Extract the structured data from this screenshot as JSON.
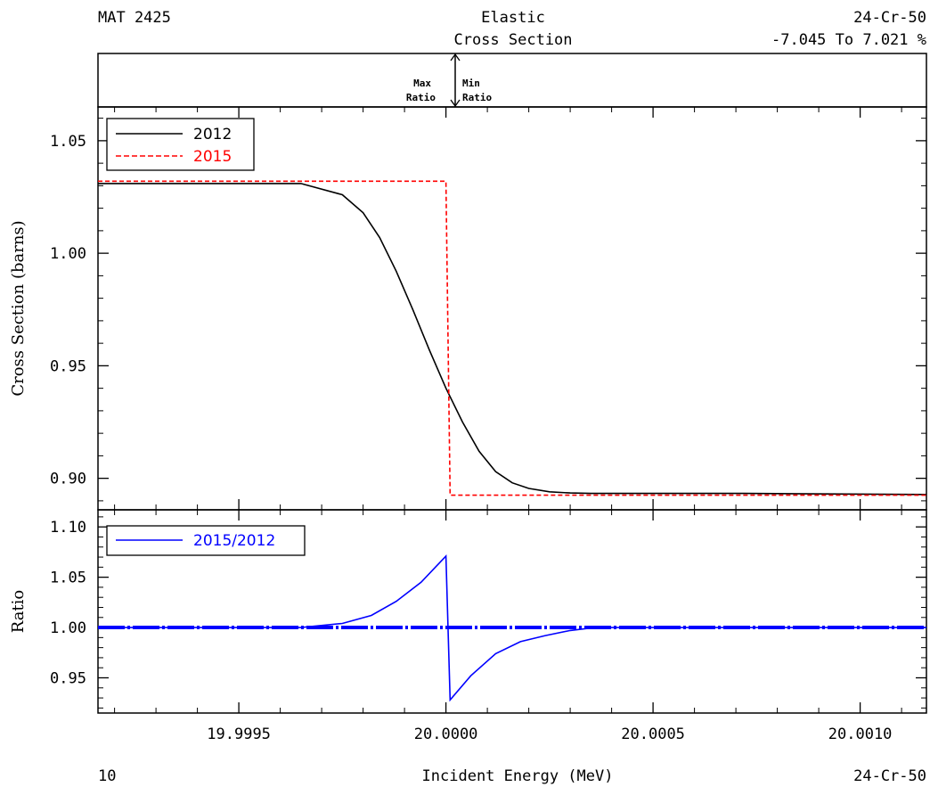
{
  "header": {
    "mat": "MAT 2425",
    "title_line1": "Elastic",
    "title_line2": "Cross Section",
    "material": "24-Cr-50",
    "range_text": "-7.045 To 7.021 %"
  },
  "ratio_indicator": {
    "max_line1": "Max",
    "max_line2": "Ratio",
    "min_line1": "Min",
    "min_line2": "Ratio"
  },
  "footer": {
    "left": "10",
    "xlabel": "Incident Energy (MeV)",
    "right": "24-Cr-50"
  },
  "colors": {
    "series_2012": "#000000",
    "series_2015": "#ff0000",
    "ratio": "#0000ff"
  },
  "chart_data": [
    {
      "type": "line",
      "ylabel": "Cross Section (barns)",
      "xlim": [
        19.99916,
        20.00116
      ],
      "ylim": [
        0.886,
        1.065
      ],
      "yticks": [
        0.9,
        0.95,
        1.0,
        1.05
      ],
      "ytick_labels": [
        "0.90",
        "0.95",
        "1.00",
        "1.05"
      ],
      "legend_position": "top-left",
      "series": [
        {
          "name": "2012",
          "style": "solid",
          "x": [
            19.99916,
            19.99965,
            19.99975,
            19.9998,
            19.99984,
            19.99988,
            19.99992,
            19.99996,
            20.0,
            20.00004,
            20.00008,
            20.00012,
            20.00016,
            20.0002,
            20.00025,
            20.0003,
            20.00035,
            20.00072,
            20.00116
          ],
          "values": [
            1.031,
            1.031,
            1.026,
            1.018,
            1.007,
            0.992,
            0.975,
            0.957,
            0.94,
            0.925,
            0.912,
            0.903,
            0.898,
            0.8955,
            0.894,
            0.8935,
            0.8933,
            0.8933,
            0.8928
          ]
        },
        {
          "name": "2015",
          "style": "dashed",
          "x": [
            19.99916,
            20.0,
            20.0,
            20.00001,
            20.00116
          ],
          "values": [
            1.032,
            1.032,
            1.032,
            0.8925,
            0.8925
          ]
        }
      ]
    },
    {
      "type": "line",
      "ylabel": "Ratio",
      "xlim": [
        19.99916,
        20.00116
      ],
      "ylim": [
        0.915,
        1.117
      ],
      "yticks": [
        0.95,
        1.0,
        1.05,
        1.1
      ],
      "ytick_labels": [
        "0.95",
        "1.00",
        "1.05",
        "1.10"
      ],
      "xticks": [
        19.9995,
        20.0,
        20.0005,
        20.001
      ],
      "xtick_labels": [
        "19.9995",
        "20.0000",
        "20.0005",
        "20.0010"
      ],
      "legend_position": "top-left",
      "reference_line": 1.0,
      "series": [
        {
          "name": "2015/2012",
          "style": "solid",
          "x": [
            19.99916,
            19.99965,
            19.99975,
            19.99982,
            19.99988,
            19.99994,
            20.0,
            20.0,
            20.00001,
            20.00006,
            20.00012,
            20.00018,
            20.00024,
            20.0003,
            20.00036,
            20.00116
          ],
          "values": [
            1.0,
            1.0,
            1.004,
            1.012,
            1.026,
            1.045,
            1.071,
            1.071,
            0.928,
            0.952,
            0.974,
            0.986,
            0.992,
            0.997,
            1.0,
            1.0
          ]
        }
      ]
    }
  ]
}
